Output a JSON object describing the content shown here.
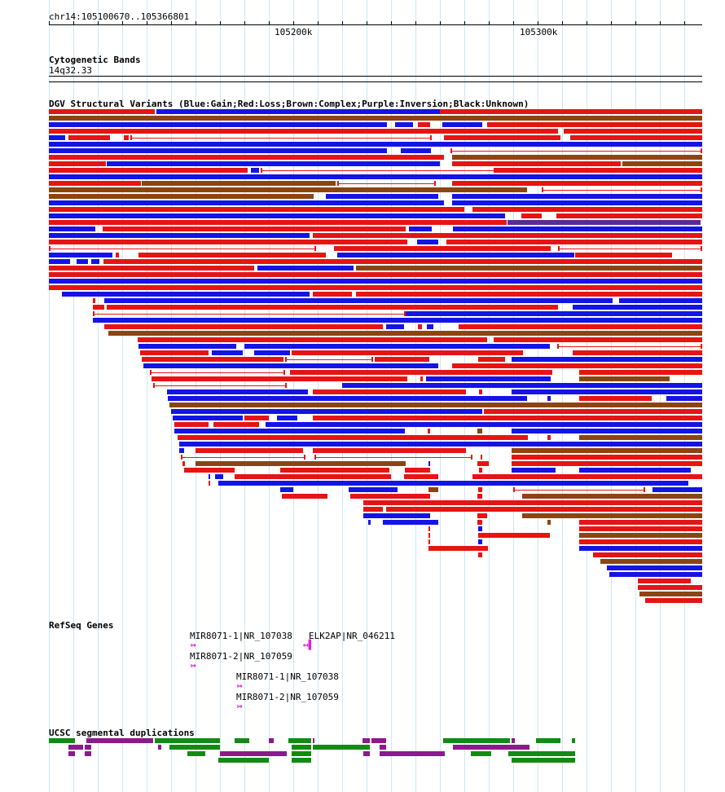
{
  "ruler": {
    "position": "chr14:105100670..105366801",
    "tick_labels": [
      "105200k",
      "105300k"
    ]
  },
  "tracks": {
    "cytobands": {
      "title": "Cytogenetic Bands",
      "band": "14q32.33"
    },
    "dgv": {
      "title": "DGV Structural Variants (Blue:Gain;Red:Loss;Brown:Complex;Purple:Inversion;Black:Unknown)",
      "colors": {
        "gain": "#1414e6",
        "loss": "#e61414",
        "complex": "#8b4513",
        "inversion": "#5a2d8c"
      }
    },
    "refseq": {
      "title": "RefSeq Genes",
      "genes": [
        {
          "label": "MIR8071-1|NR_107038",
          "strand": "+"
        },
        {
          "label": "ELK2AP|NR_046211",
          "strand": "-"
        },
        {
          "label": "MIR8071-2|NR_107059",
          "strand": "+"
        },
        {
          "label": "MIR8071-1|NR_107038",
          "strand": "+"
        },
        {
          "label": "MIR8071-2|NR_107059",
          "strand": "+"
        }
      ]
    },
    "segdups": {
      "title": "UCSC segmental duplications",
      "colors": {
        "green": "#138a13",
        "purple": "#8b1a8b"
      }
    }
  }
}
